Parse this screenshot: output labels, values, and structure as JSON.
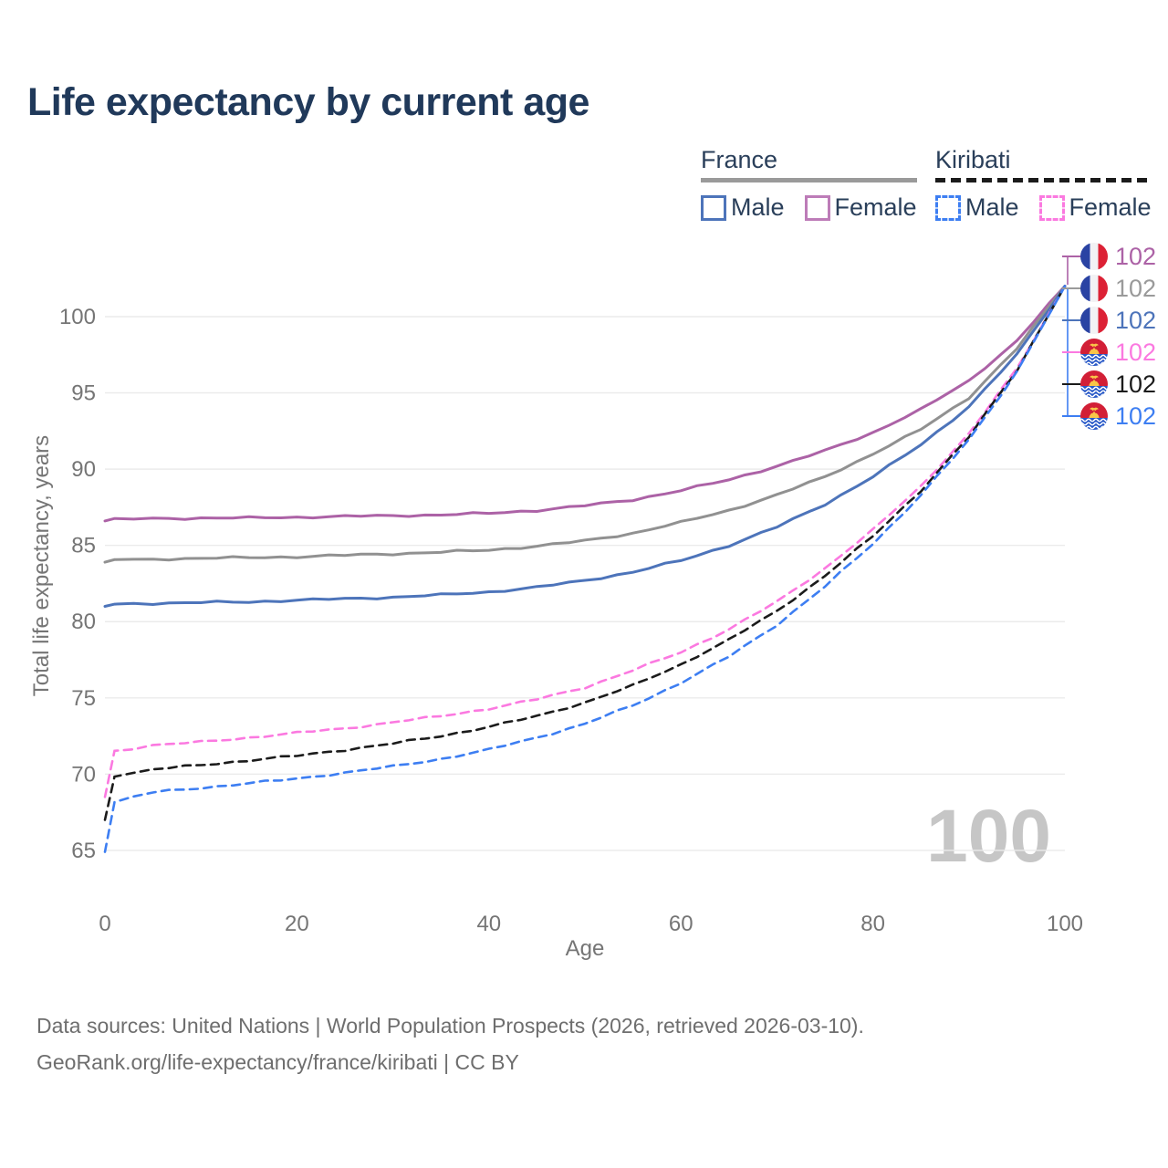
{
  "title": "Life expectancy by current age",
  "watermark": "100",
  "legend": {
    "groups": [
      {
        "label": "France",
        "underline_style": "solid",
        "underline_color": "#9a9a9a",
        "items": [
          {
            "label": "Male",
            "color": "#4d74ba",
            "dash": false
          },
          {
            "label": "Female",
            "color": "#bd7cb8",
            "dash": false
          }
        ]
      },
      {
        "label": "Kiribati",
        "underline_style": "dashed",
        "underline_color": "#1b1b1b",
        "items": [
          {
            "label": "Male",
            "color": "#3d7ef2",
            "dash": true
          },
          {
            "label": "Female",
            "color": "#fb79e0",
            "dash": true
          }
        ]
      }
    ]
  },
  "chart_data": {
    "type": "line",
    "title": "Life expectancy by current age",
    "xlabel": "Age",
    "ylabel": "Total life expectancy, years",
    "xlim": [
      0,
      100
    ],
    "ylim": [
      63,
      103
    ],
    "grid": true,
    "legend_position": "top-right",
    "x_ticks": [
      0,
      20,
      40,
      60,
      80,
      100
    ],
    "y_ticks": [
      65,
      70,
      75,
      80,
      85,
      90,
      95,
      100
    ],
    "x": [
      0,
      1,
      5,
      10,
      15,
      20,
      25,
      30,
      35,
      40,
      45,
      50,
      55,
      60,
      65,
      70,
      75,
      80,
      85,
      90,
      95,
      100
    ],
    "series": [
      {
        "name": "France Female",
        "country": "France",
        "sex": "Female",
        "color": "#ac62a6",
        "dash": false,
        "values": [
          86.6,
          86.7,
          86.75,
          86.8,
          86.8,
          86.85,
          86.9,
          86.95,
          87.0,
          87.1,
          87.3,
          87.6,
          88.0,
          88.6,
          89.3,
          90.2,
          91.2,
          92.4,
          93.9,
          95.8,
          98.4,
          102
        ]
      },
      {
        "name": "France",
        "country": "France",
        "sex": "All",
        "color": "#919191",
        "dash": false,
        "values": [
          83.9,
          84.05,
          84.1,
          84.15,
          84.2,
          84.25,
          84.35,
          84.45,
          84.55,
          84.7,
          84.95,
          85.3,
          85.8,
          86.5,
          87.3,
          88.3,
          89.5,
          91.0,
          92.6,
          94.7,
          97.9,
          102
        ]
      },
      {
        "name": "France Male",
        "country": "France",
        "sex": "Male",
        "color": "#4d74ba",
        "dash": false,
        "values": [
          81.0,
          81.15,
          81.2,
          81.25,
          81.3,
          81.4,
          81.5,
          81.6,
          81.75,
          81.95,
          82.25,
          82.7,
          83.25,
          84.0,
          85.0,
          86.2,
          87.7,
          89.5,
          91.6,
          94.1,
          97.5,
          102
        ]
      },
      {
        "name": "Kiribati Female",
        "country": "Kiribati",
        "sex": "Female",
        "color": "#fb79e0",
        "dash": true,
        "values": [
          68.5,
          71.5,
          71.9,
          72.1,
          72.4,
          72.7,
          73.0,
          73.4,
          73.8,
          74.3,
          74.9,
          75.7,
          76.8,
          78.0,
          79.5,
          81.3,
          83.5,
          86.0,
          88.9,
          92.3,
          96.6,
          102
        ]
      },
      {
        "name": "Kiribati",
        "country": "Kiribati",
        "sex": "All",
        "color": "#1b1b1b",
        "dash": true,
        "values": [
          67.0,
          69.9,
          70.3,
          70.6,
          70.9,
          71.2,
          71.6,
          72.0,
          72.5,
          73.1,
          73.8,
          74.7,
          75.8,
          77.2,
          78.8,
          80.7,
          83.0,
          85.6,
          88.6,
          92.1,
          96.5,
          102
        ]
      },
      {
        "name": "Kiribati Male",
        "country": "Kiribati",
        "sex": "Male",
        "color": "#3d7ef2",
        "dash": true,
        "values": [
          64.9,
          68.2,
          68.8,
          69.1,
          69.4,
          69.7,
          70.1,
          70.5,
          71.0,
          71.6,
          72.4,
          73.3,
          74.5,
          76.0,
          77.7,
          79.8,
          82.3,
          85.1,
          88.3,
          91.9,
          96.4,
          102
        ]
      }
    ]
  },
  "endpoints": [
    {
      "flag": "france",
      "value": "102",
      "color": "#ac62a6"
    },
    {
      "flag": "france",
      "value": "102",
      "color": "#9a9a9a"
    },
    {
      "flag": "france",
      "value": "102",
      "color": "#4d74ba"
    },
    {
      "flag": "kiribati",
      "value": "102",
      "color": "#fb79e0"
    },
    {
      "flag": "kiribati",
      "value": "102",
      "color": "#1b1b1b"
    },
    {
      "flag": "kiribati",
      "value": "102",
      "color": "#3d7ef2"
    }
  ],
  "footer": {
    "line1": "Data sources: United Nations | World Population Prospects (2026, retrieved 2026-03-10).",
    "line2": "GeoRank.org/life-expectancy/france/kiribati | CC BY"
  },
  "colors": {
    "title_text": "#20395a",
    "legend_text": "#2a3f5a",
    "tick_text": "#757575",
    "gridline": "#ebebeb",
    "watermark": "#c6c6c6",
    "footer_text": "#6e6e6e"
  }
}
